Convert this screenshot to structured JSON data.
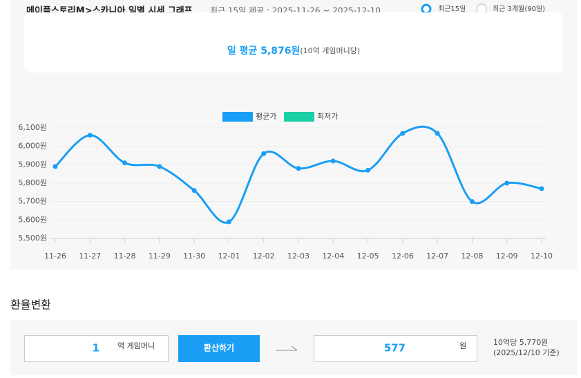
{
  "header": {
    "title": "메이플스토리M>스카니아 일별 시세 그래프",
    "subtitle": "최근 15일 제공 : 2025-11-26 ~ 2025-12-10",
    "options": [
      "최근15일",
      "최근 3개월(90일)"
    ]
  },
  "summary": {
    "main": "일 평균 5,876원",
    "unit": "(10억 게임머니당)"
  },
  "chart_data": {
    "type": "line",
    "legend": [
      {
        "name": "평균가",
        "color": "#1a9ef5"
      },
      {
        "name": "최저가",
        "color": "#1ccfa6"
      }
    ],
    "categories": [
      "11-26",
      "11-27",
      "11-28",
      "11-29",
      "11-30",
      "12-01",
      "12-02",
      "12-03",
      "12-04",
      "12-05",
      "12-06",
      "12-07",
      "12-08",
      "12-09",
      "12-10"
    ],
    "series": [
      {
        "name": "평균가",
        "color": "#1a9ef5",
        "values": [
          5890,
          6060,
          5910,
          5890,
          5760,
          5590,
          5960,
          5880,
          5920,
          5870,
          6070,
          6070,
          5700,
          5800,
          5770
        ]
      }
    ],
    "ylim": [
      5500,
      6100
    ],
    "yticks": [
      {
        "value": 5500,
        "label": "5,500원"
      },
      {
        "value": 5600,
        "label": "5,600원"
      },
      {
        "value": 5700,
        "label": "5,700원"
      },
      {
        "value": 5800,
        "label": "5,800원"
      },
      {
        "value": 5900,
        "label": "5,900원"
      },
      {
        "value": 6000,
        "label": "6,000원"
      },
      {
        "value": 6100,
        "label": "6,100원"
      }
    ],
    "grid": true,
    "smooth": true
  },
  "converter": {
    "title": "환율변환",
    "input": "1",
    "input_unit": "억 게임머니",
    "button": "환산하기",
    "output": "577",
    "output_unit": "원",
    "note": [
      "10억당 5,770원",
      "(2025/12/10 기준)"
    ]
  }
}
